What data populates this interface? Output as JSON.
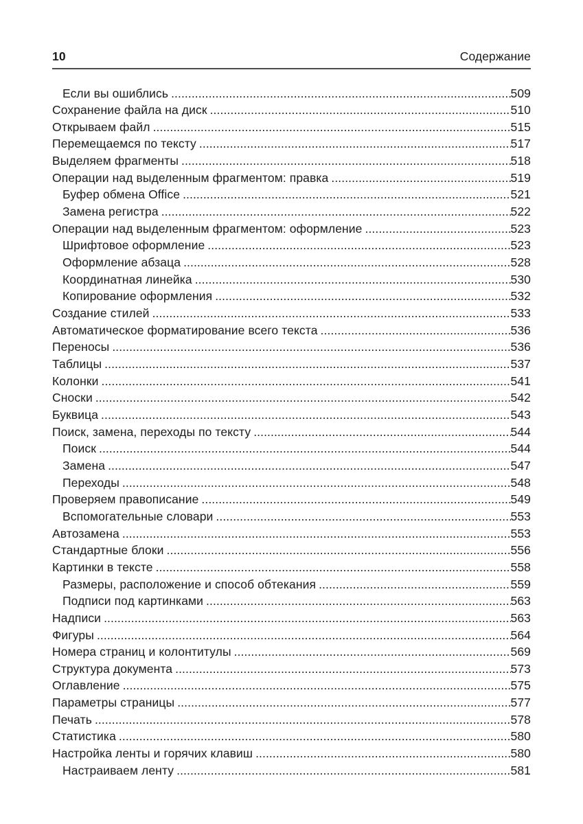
{
  "header": {
    "page_number": "10",
    "running_title": "Содержание"
  },
  "toc": {
    "entries": [
      {
        "title": "Если вы ошиблись",
        "page": "509",
        "level": 2
      },
      {
        "title": "Сохранение файла на диск",
        "page": "510",
        "level": 1
      },
      {
        "title": "Открываем файл",
        "page": "515",
        "level": 1
      },
      {
        "title": "Перемещаемся по тексту",
        "page": "517",
        "level": 1
      },
      {
        "title": "Выделяем фрагменты",
        "page": "518",
        "level": 1
      },
      {
        "title": "Операции над выделенным фрагментом: правка",
        "page": "519",
        "level": 1
      },
      {
        "title": "Буфер обмена Office",
        "page": "521",
        "level": 2
      },
      {
        "title": "Замена регистра",
        "page": "522",
        "level": 2
      },
      {
        "title": "Операции над выделенным фрагментом: оформление",
        "page": "523",
        "level": 1
      },
      {
        "title": "Шрифтовое оформление",
        "page": "523",
        "level": 2
      },
      {
        "title": "Оформление абзаца",
        "page": "528",
        "level": 2
      },
      {
        "title": "Координатная линейка",
        "page": "530",
        "level": 2
      },
      {
        "title": "Копирование оформления",
        "page": "532",
        "level": 2
      },
      {
        "title": "Создание стилей",
        "page": "533",
        "level": 1
      },
      {
        "title": "Автоматическое форматирование всего текста",
        "page": "536",
        "level": 1
      },
      {
        "title": "Переносы",
        "page": "536",
        "level": 1
      },
      {
        "title": "Таблицы",
        "page": "537",
        "level": 1
      },
      {
        "title": "Колонки",
        "page": "541",
        "level": 1
      },
      {
        "title": "Сноски",
        "page": "542",
        "level": 1
      },
      {
        "title": "Буквица",
        "page": "543",
        "level": 1
      },
      {
        "title": "Поиск, замена, переходы по тексту",
        "page": "544",
        "level": 1
      },
      {
        "title": "Поиск",
        "page": "544",
        "level": 2
      },
      {
        "title": "Замена",
        "page": "547",
        "level": 2
      },
      {
        "title": "Переходы",
        "page": "548",
        "level": 2
      },
      {
        "title": "Проверяем правописание",
        "page": "549",
        "level": 1
      },
      {
        "title": "Вспомогательные словари",
        "page": "553",
        "level": 2
      },
      {
        "title": "Автозамена",
        "page": "553",
        "level": 1
      },
      {
        "title": "Стандартные блоки",
        "page": "556",
        "level": 1
      },
      {
        "title": "Картинки в тексте",
        "page": "558",
        "level": 1
      },
      {
        "title": "Размеры, расположение и способ обтекания",
        "page": "559",
        "level": 2
      },
      {
        "title": "Подписи под картинками",
        "page": "563",
        "level": 2
      },
      {
        "title": "Надписи",
        "page": "563",
        "level": 1
      },
      {
        "title": "Фигуры",
        "page": "564",
        "level": 1
      },
      {
        "title": "Номера страниц и колонтитулы",
        "page": "569",
        "level": 1
      },
      {
        "title": "Структура документа",
        "page": "573",
        "level": 1
      },
      {
        "title": "Оглавление",
        "page": "575",
        "level": 1
      },
      {
        "title": "Параметры страницы",
        "page": "577",
        "level": 1
      },
      {
        "title": "Печать",
        "page": "578",
        "level": 1
      },
      {
        "title": "Статистика",
        "page": "580",
        "level": 1
      },
      {
        "title": "Настройка ленты и горячих клавиш",
        "page": "580",
        "level": 1
      },
      {
        "title": "Настраиваем ленту",
        "page": "581",
        "level": 2
      }
    ]
  }
}
